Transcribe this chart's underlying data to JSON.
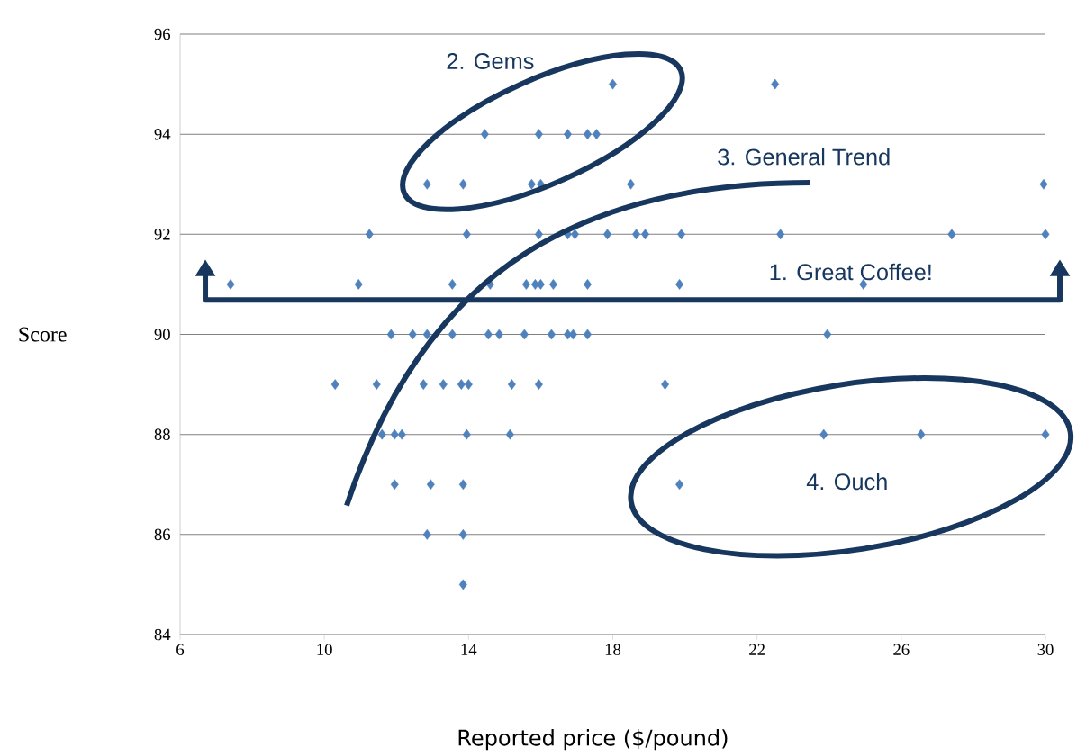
{
  "chart_data": {
    "type": "scatter",
    "xlabel": "Reported price ($/pound)",
    "ylabel": "Score",
    "x": [
      18.0,
      22.5,
      14.45,
      15.95,
      16.75,
      17.3,
      17.55,
      12.85,
      13.85,
      15.75,
      16.0,
      18.5,
      29.95,
      11.25,
      13.95,
      15.95,
      16.75,
      16.95,
      17.85,
      18.65,
      18.9,
      19.9,
      22.65,
      27.4,
      30.0,
      7.4,
      10.95,
      13.55,
      14.6,
      15.6,
      15.85,
      16.0,
      16.35,
      17.3,
      19.85,
      24.95,
      11.85,
      12.45,
      12.85,
      13.55,
      14.55,
      14.85,
      15.55,
      16.3,
      16.75,
      16.9,
      17.3,
      23.95,
      10.3,
      11.45,
      12.75,
      13.3,
      13.8,
      14.0,
      15.2,
      15.95,
      19.45,
      11.6,
      11.95,
      12.15,
      13.95,
      15.15,
      23.85,
      26.55,
      30.0,
      11.95,
      12.95,
      13.85,
      19.85,
      12.85,
      13.85,
      13.85
    ],
    "values": [
      95,
      95,
      94,
      94,
      94,
      94,
      94,
      93,
      93,
      93,
      93,
      93,
      93,
      92,
      92,
      92,
      92,
      92,
      92,
      92,
      92,
      92,
      92,
      92,
      92,
      91,
      91,
      91,
      91,
      91,
      91,
      91,
      91,
      91,
      91,
      91,
      90,
      90,
      90,
      90,
      90,
      90,
      90,
      90,
      90,
      90,
      90,
      90,
      89,
      89,
      89,
      89,
      89,
      89,
      89,
      89,
      89,
      88,
      88,
      88,
      88,
      88,
      88,
      88,
      88,
      87,
      87,
      87,
      87,
      86,
      86,
      85
    ],
    "color": "#4f81bd",
    "marker": "diamond",
    "grid": "y",
    "xlim": [
      6,
      30
    ],
    "xticks": [
      6,
      10,
      14,
      18,
      22,
      26,
      30
    ],
    "ylim": [
      84,
      96
    ],
    "yticks": [
      84,
      86,
      88,
      90,
      92,
      94,
      96
    ],
    "annotations": [
      "2.  Gems",
      "3.  General Trend",
      "1.  Great  Coffee!",
      "4.  Ouch"
    ]
  }
}
